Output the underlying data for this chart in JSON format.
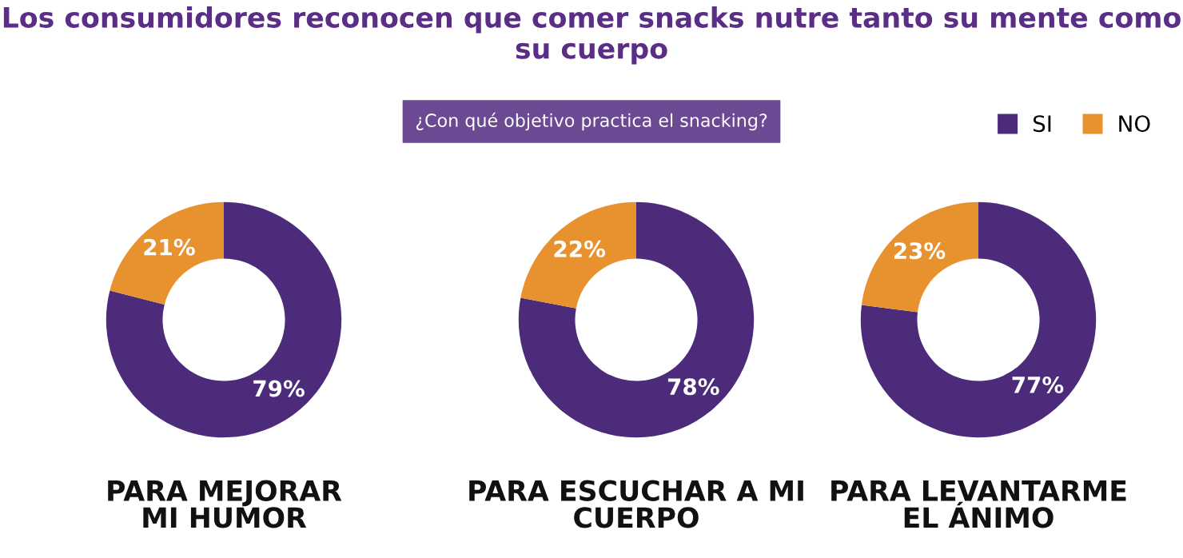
{
  "chart_data": [
    {
      "type": "donut",
      "xlabel": "PARA MEJORAR\nMI HUMOR",
      "categories": [
        null,
        null
      ],
      "values": [
        79,
        21
      ],
      "colors": [
        "#4b2b7a",
        "#e8922f"
      ],
      "value_labels": [
        "79%",
        "21%"
      ]
    },
    {
      "type": "donut",
      "title": "Los consumidores reconocen que comer snacks nutre tanto su mente como su cuerpo",
      "subtitle": "¿Con qué objetivo practica el snacking?",
      "xlabel": "PARA ESCUCHAR A MI\nCUERPO",
      "categories": [
        null,
        null
      ],
      "values": [
        78,
        22
      ],
      "colors": [
        "#4b2b7a",
        "#e8922f"
      ],
      "value_labels": [
        "78%",
        "22%"
      ]
    },
    {
      "type": "donut",
      "xlabel": "PARA LEVANTARME\nEL ÁNIMO",
      "categories": [
        "SI",
        "NO"
      ],
      "values": [
        77,
        23
      ],
      "colors": [
        "#4b2b7a",
        "#e8922f"
      ],
      "value_labels": [
        "77%",
        "23%"
      ],
      "legend": "top right"
    }
  ]
}
